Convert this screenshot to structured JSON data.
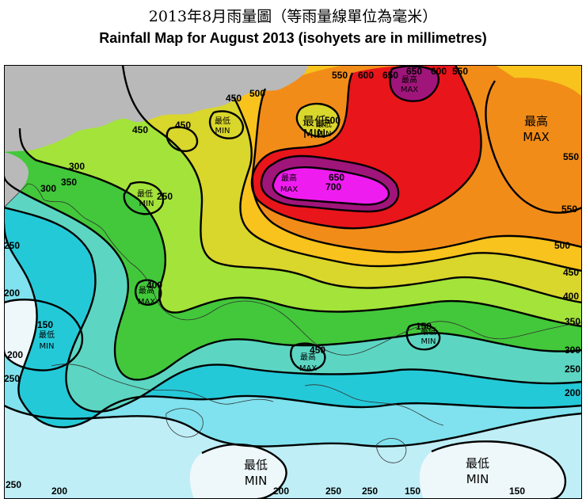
{
  "title_zh": "2013年8月雨量圖（等雨量線單位為毫米）",
  "title_en": "Rainfall Map for August 2013 (isohyets are in millimetres)",
  "legend_colors": {
    "lt150": "#eef8fb",
    "150_200": "#bfeef6",
    "200_250": "#7fe2ee",
    "250_300": "#24c9d8",
    "300_350": "#5cd6c2",
    "350_400": "#42c83a",
    "400_450": "#a4e33a",
    "450_500": "#d9d62c",
    "500_550": "#f7c31c",
    "550_600": "#f28c18",
    "600_650": "#e8151b",
    "650_700": "#a0157a",
    "gt700": "#ef1cef",
    "land_outside": "#b9b9b9"
  },
  "contour_labels": [
    {
      "text": "550"
    },
    {
      "text": "600"
    },
    {
      "text": "650"
    },
    {
      "text": "650"
    },
    {
      "text": "600"
    },
    {
      "text": "550"
    },
    {
      "text": "450"
    },
    {
      "text": "500"
    },
    {
      "text": "450"
    },
    {
      "text": "450"
    },
    {
      "text": "500"
    },
    {
      "text": "300"
    },
    {
      "text": "350"
    },
    {
      "text": "300"
    },
    {
      "text": "250"
    },
    {
      "text": "650"
    },
    {
      "text": "700"
    },
    {
      "text": "550"
    },
    {
      "text": "550"
    },
    {
      "text": "500"
    },
    {
      "text": "450"
    },
    {
      "text": "400"
    },
    {
      "text": "350"
    },
    {
      "text": "300"
    },
    {
      "text": "250"
    },
    {
      "text": "200"
    },
    {
      "text": "250"
    },
    {
      "text": "200"
    },
    {
      "text": "150"
    },
    {
      "text": "200"
    },
    {
      "text": "250"
    },
    {
      "text": "400"
    },
    {
      "text": "450"
    },
    {
      "text": "150"
    },
    {
      "text": "250"
    },
    {
      "text": "200"
    },
    {
      "text": "200"
    },
    {
      "text": "250"
    },
    {
      "text": "250"
    },
    {
      "text": "150"
    },
    {
      "text": "150"
    }
  ],
  "extrema": [
    {
      "zh": "最低",
      "en": "MIN"
    },
    {
      "zh": "最低",
      "en": "MIN"
    },
    {
      "zh": "最高",
      "en": "MAX"
    },
    {
      "zh": "最低",
      "en": "MIN"
    },
    {
      "zh": "最高",
      "en": "MAX"
    },
    {
      "zh": "最高",
      "en": "MAX"
    },
    {
      "zh": "最低",
      "en": "MIN"
    },
    {
      "zh": "最高",
      "en": "MAX"
    },
    {
      "zh": "最低",
      "en": "MIN"
    },
    {
      "zh": "最高",
      "en": "MAX"
    },
    {
      "zh": "最低",
      "en": "MIN"
    },
    {
      "zh": "最低",
      "en": "MIN"
    },
    {
      "zh": "最低",
      "en": "MIN"
    }
  ]
}
